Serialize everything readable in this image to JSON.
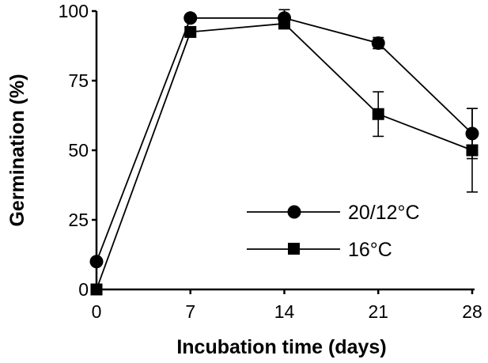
{
  "chart_data": {
    "type": "line",
    "xlabel": "Incubation time (days)",
    "ylabel": "Germination (%)",
    "x": [
      0,
      7,
      14,
      21,
      28
    ],
    "x_ticks": [
      "0",
      "7",
      "14",
      "21",
      "28"
    ],
    "y_ticks": [
      "0",
      "25",
      "50",
      "75",
      "100"
    ],
    "xlim": [
      0,
      28
    ],
    "ylim": [
      0,
      100
    ],
    "grid": false,
    "legend_position": "bottom-right",
    "series": [
      {
        "name": "20/12°C",
        "marker": "circle",
        "values": [
          10,
          97.5,
          97.5,
          88.5,
          56
        ],
        "errors": [
          0,
          0,
          3,
          2,
          9
        ]
      },
      {
        "name": "16°C",
        "marker": "square",
        "values": [
          0,
          92.5,
          95.5,
          63,
          50
        ],
        "errors": [
          0,
          0,
          0,
          8,
          15
        ]
      }
    ]
  }
}
